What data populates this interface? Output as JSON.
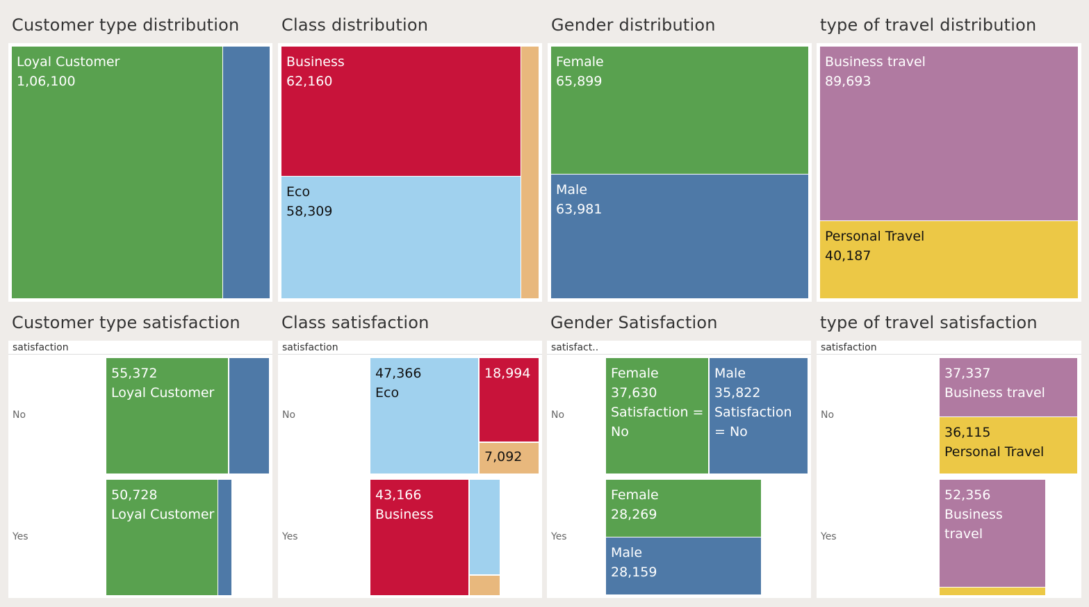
{
  "colors": {
    "green": "#59a14f",
    "blue": "#4e79a7",
    "red": "#c8133a",
    "lightblue": "#a0d1ee",
    "orange": "#e8b87d",
    "purple": "#b07aa1",
    "yellow": "#ecc846"
  },
  "titles": {
    "cust_dist": "Customer type distribution",
    "class_dist": "Class distribution",
    "gender_dist": "Gender distribution",
    "travel_dist": "type of travel distribution",
    "cust_sat": "Customer type satisfaction",
    "class_sat": "Class satisfaction",
    "gender_sat": "Gender Satisfaction",
    "travel_sat": "type of travel satisfaction"
  },
  "sat_headers": {
    "cust": "satisfaction",
    "class": "satisfaction",
    "gender": "satisfact..",
    "travel": "satisfaction"
  },
  "row_labels": {
    "no": "No",
    "yes": "Yes"
  },
  "chart_data": [
    {
      "type": "treemap",
      "title": "Customer type distribution",
      "items": [
        {
          "label": "Loyal Customer",
          "value": "1,06,100",
          "color": "green"
        },
        {
          "label": "",
          "value": "",
          "color": "blue"
        }
      ]
    },
    {
      "type": "treemap",
      "title": "Class distribution",
      "items": [
        {
          "label": "Business",
          "value": "62,160",
          "color": "red"
        },
        {
          "label": "Eco",
          "value": "58,309",
          "color": "lightblue"
        },
        {
          "label": "",
          "value": "",
          "color": "orange"
        }
      ]
    },
    {
      "type": "treemap",
      "title": "Gender distribution",
      "items": [
        {
          "label": "Female",
          "value": "65,899",
          "color": "green"
        },
        {
          "label": "Male",
          "value": "63,981",
          "color": "blue"
        }
      ]
    },
    {
      "type": "treemap",
      "title": "type of travel distribution",
      "items": [
        {
          "label": "Business travel",
          "value": "89,693",
          "color": "purple"
        },
        {
          "label": "Personal Travel",
          "value": "40,187",
          "color": "yellow"
        }
      ]
    },
    {
      "type": "treemap",
      "title": "Customer type satisfaction",
      "rows": {
        "No": [
          {
            "label": "Loyal Customer",
            "value": "55,372",
            "color": "green"
          },
          {
            "label": "",
            "value": "",
            "color": "blue"
          }
        ],
        "Yes": [
          {
            "label": "Loyal Customer",
            "value": "50,728",
            "color": "green"
          },
          {
            "label": "",
            "value": "",
            "color": "blue"
          }
        ]
      }
    },
    {
      "type": "treemap",
      "title": "Class satisfaction",
      "rows": {
        "No": [
          {
            "label": "Eco",
            "value": "47,366",
            "color": "lightblue"
          },
          {
            "label": "",
            "value": "18,994",
            "color": "red"
          },
          {
            "label": "",
            "value": "7,092",
            "color": "orange"
          }
        ],
        "Yes": [
          {
            "label": "Business",
            "value": "43,166",
            "color": "red"
          },
          {
            "label": "",
            "value": "",
            "color": "lightblue"
          },
          {
            "label": "",
            "value": "",
            "color": "orange"
          }
        ]
      }
    },
    {
      "type": "treemap",
      "title": "Gender Satisfaction",
      "rows": {
        "No": [
          {
            "label": "Female",
            "value": "37,630",
            "extra": [
              "Satisfaction =",
              "No"
            ],
            "color": "green"
          },
          {
            "label": "Male",
            "value": "35,822",
            "extra": [
              "Satisfaction",
              "= No"
            ],
            "color": "blue"
          }
        ],
        "Yes": [
          {
            "label": "Female",
            "value": "28,269",
            "color": "green"
          },
          {
            "label": "Male",
            "value": "28,159",
            "color": "blue"
          }
        ]
      }
    },
    {
      "type": "treemap",
      "title": "type of travel satisfaction",
      "rows": {
        "No": [
          {
            "label": "Business travel",
            "value": "37,337",
            "color": "purple"
          },
          {
            "label": "Personal Travel",
            "value": "36,115",
            "color": "yellow"
          }
        ],
        "Yes": [
          {
            "label": "Business travel",
            "value": "52,356",
            "lines": [
              "Business",
              "travel"
            ],
            "color": "purple"
          },
          {
            "label": "",
            "value": "",
            "color": "yellow"
          }
        ]
      }
    }
  ]
}
